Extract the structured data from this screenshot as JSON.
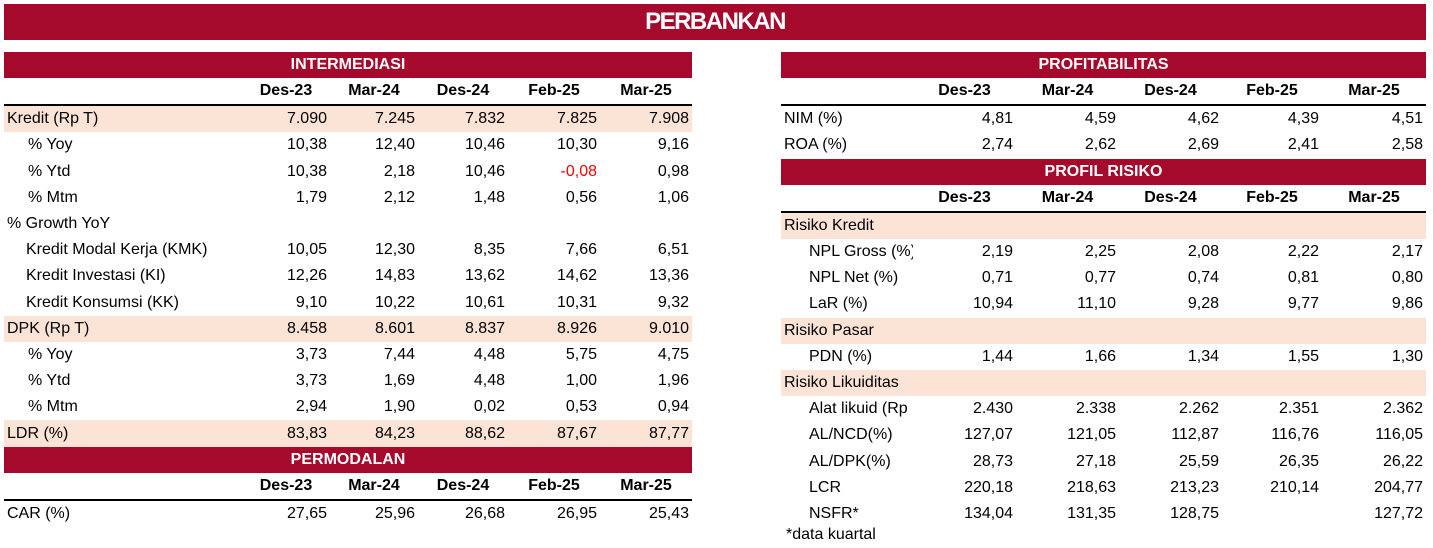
{
  "banner": "PERBANKAN",
  "intermediasi": {
    "title": "INTERMEDIASI",
    "columns": [
      "Des-23",
      "Mar-24",
      "Des-24",
      "Feb-25",
      "Mar-25"
    ],
    "rows": [
      {
        "label": "Kredit (Rp T)",
        "values": [
          "7.090",
          "7.245",
          "7.832",
          "7.825",
          "7.908"
        ]
      },
      {
        "label": "% Yoy",
        "values": [
          "10,38",
          "12,40",
          "10,46",
          "10,30",
          "9,16"
        ]
      },
      {
        "label": "% Ytd",
        "values": [
          "10,38",
          "2,18",
          "10,46",
          "-0,08",
          "0,98"
        ]
      },
      {
        "label": "% Mtm",
        "values": [
          "1,79",
          "2,12",
          "1,48",
          "0,56",
          "1,06"
        ]
      },
      {
        "label": "% Growth YoY"
      },
      {
        "label": "Kredit Modal Kerja (KMK)",
        "values": [
          "10,05",
          "12,30",
          "8,35",
          "7,66",
          "6,51"
        ]
      },
      {
        "label": "Kredit Investasi (KI)",
        "values": [
          "12,26",
          "14,83",
          "13,62",
          "14,62",
          "13,36"
        ]
      },
      {
        "label": "Kredit Konsumsi (KK)",
        "values": [
          "9,10",
          "10,22",
          "10,61",
          "10,31",
          "9,32"
        ]
      },
      {
        "label": "DPK (Rp T)",
        "values": [
          "8.458",
          "8.601",
          "8.837",
          "8.926",
          "9.010"
        ]
      },
      {
        "label": "% Yoy",
        "values": [
          "3,73",
          "7,44",
          "4,48",
          "5,75",
          "4,75"
        ]
      },
      {
        "label": "% Ytd",
        "values": [
          "3,73",
          "1,69",
          "4,48",
          "1,00",
          "1,96"
        ]
      },
      {
        "label": "% Mtm",
        "values": [
          "2,94",
          "1,90",
          "0,02",
          "0,53",
          "0,94"
        ]
      },
      {
        "label": "LDR (%)",
        "values": [
          "83,83",
          "84,23",
          "88,62",
          "87,67",
          "87,77"
        ]
      }
    ]
  },
  "permodalan": {
    "title": "PERMODALAN",
    "columns": [
      "Des-23",
      "Mar-24",
      "Des-24",
      "Feb-25",
      "Mar-25"
    ],
    "rows": [
      {
        "label": "CAR (%)",
        "values": [
          "27,65",
          "25,96",
          "26,68",
          "26,95",
          "25,43"
        ]
      }
    ]
  },
  "profitabilitas": {
    "title": "PROFITABILITAS",
    "columns": [
      "Des-23",
      "Mar-24",
      "Des-24",
      "Feb-25",
      "Mar-25"
    ],
    "rows": [
      {
        "label": "NIM (%)",
        "values": [
          "4,81",
          "4,59",
          "4,62",
          "4,39",
          "4,51"
        ]
      },
      {
        "label": "ROA (%)",
        "values": [
          "2,74",
          "2,62",
          "2,69",
          "2,41",
          "2,58"
        ]
      }
    ]
  },
  "profil_risiko": {
    "title": "PROFIL RISIKO",
    "columns": [
      "Des-23",
      "Mar-24",
      "Des-24",
      "Feb-25",
      "Mar-25"
    ],
    "rows": [
      {
        "label": "Risiko Kredit"
      },
      {
        "label": "NPL Gross (%)",
        "values": [
          "2,19",
          "2,25",
          "2,08",
          "2,22",
          "2,17"
        ]
      },
      {
        "label": "NPL Net (%)",
        "values": [
          "0,71",
          "0,77",
          "0,74",
          "0,81",
          "0,80"
        ]
      },
      {
        "label": "LaR (%)",
        "values": [
          "10,94",
          "11,10",
          "9,28",
          "9,77",
          "9,86"
        ]
      },
      {
        "label": "Risiko Pasar"
      },
      {
        "label": "PDN (%)",
        "values": [
          "1,44",
          "1,66",
          "1,34",
          "1,55",
          "1,30"
        ]
      },
      {
        "label": "Risiko Likuiditas"
      },
      {
        "label": "Alat likuid (Rp",
        "values": [
          "2.430",
          "2.338",
          "2.262",
          "2.351",
          "2.362"
        ]
      },
      {
        "label": "AL/NCD(%)",
        "values": [
          "127,07",
          "121,05",
          "112,87",
          "116,76",
          "116,05"
        ]
      },
      {
        "label": "AL/DPK(%)",
        "values": [
          "28,73",
          "27,18",
          "25,59",
          "26,35",
          "26,22"
        ]
      },
      {
        "label": "LCR",
        "values": [
          "220,18",
          "218,63",
          "213,23",
          "210,14",
          "204,77"
        ]
      },
      {
        "label": "NSFR*",
        "values": [
          "134,04",
          "131,35",
          "128,75",
          "",
          "127,72"
        ]
      }
    ]
  },
  "footnote": "*data kuartal",
  "colors": {
    "banner": "#a50a2d",
    "highlight_row": "#fbe3d6",
    "negative": "#ff0000"
  }
}
